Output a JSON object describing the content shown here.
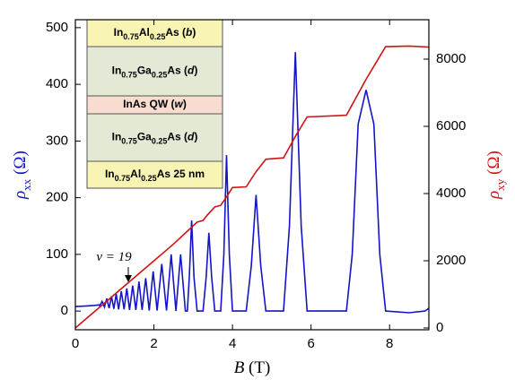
{
  "chart_data": {
    "type": "line",
    "xlabel": [
      {
        "t": "B",
        "s": "i"
      },
      {
        "t": " (T)"
      }
    ],
    "ylabel": [
      {
        "t": "ρ",
        "s": "i"
      },
      {
        "t": "xx",
        "s": "sub"
      },
      {
        "t": " (Ω)"
      }
    ],
    "y2label": [
      {
        "t": "ρ",
        "s": "i"
      },
      {
        "t": "xy",
        "s": "sub"
      },
      {
        "t": " (Ω)"
      }
    ],
    "xlim": [
      0,
      9
    ],
    "xticks": [
      0,
      2,
      4,
      6,
      8
    ],
    "ylim": [
      -33,
      514
    ],
    "yticks": [
      0,
      100,
      200,
      300,
      400,
      500
    ],
    "y2lim": [
      -53,
      9173
    ],
    "y2ticks": [
      0,
      2000,
      4000,
      6000,
      8000
    ],
    "series": [
      {
        "name": "ρxx",
        "color": "#1414c8",
        "x": [
          0,
          0.3,
          0.5,
          0.6,
          0.62,
          0.68,
          0.74,
          0.8,
          0.86,
          0.92,
          0.98,
          1.04,
          1.1,
          1.17,
          1.24,
          1.31,
          1.38,
          1.46,
          1.54,
          1.62,
          1.7,
          1.79,
          1.88,
          1.98,
          2.08,
          2.2,
          2.32,
          2.44,
          2.56,
          2.68,
          2.8,
          2.85,
          2.9,
          2.96,
          3.02,
          3.1,
          3.25,
          3.33,
          3.4,
          3.47,
          3.55,
          3.7,
          3.78,
          3.85,
          3.92,
          4.0,
          4.35,
          4.48,
          4.6,
          4.72,
          4.85,
          5.3,
          5.45,
          5.6,
          5.75,
          5.9,
          6.9,
          7.05,
          7.2,
          7.4,
          7.6,
          7.75,
          7.9,
          8.5,
          8.9,
          9
        ],
        "values": [
          8,
          9,
          10,
          11,
          9,
          17,
          7,
          22,
          5,
          26,
          4,
          30,
          3,
          35,
          3,
          40,
          2,
          45,
          2,
          52,
          2,
          58,
          1,
          70,
          1,
          83,
          1,
          100,
          0,
          100,
          0,
          0,
          60,
          160,
          60,
          0,
          0,
          60,
          138,
          60,
          0,
          0,
          100,
          275,
          100,
          0,
          0,
          80,
          205,
          80,
          0,
          0,
          150,
          457,
          150,
          0,
          0,
          100,
          330,
          390,
          330,
          100,
          0,
          -3,
          0,
          5
        ]
      },
      {
        "name": "ρxy",
        "color": "#d01414",
        "axis": "y2",
        "x": [
          0,
          2.0,
          2.3,
          2.5,
          2.85,
          3.1,
          3.25,
          3.35,
          3.55,
          3.7,
          3.85,
          4.0,
          4.35,
          4.6,
          4.85,
          5.3,
          5.6,
          5.9,
          6.9,
          7.4,
          7.9,
          8.5,
          9
        ],
        "values": [
          0,
          2000,
          2300,
          2500,
          2880,
          3150,
          3200,
          3350,
          3600,
          3650,
          3900,
          4180,
          4200,
          4650,
          5020,
          5060,
          5700,
          6280,
          6330,
          7400,
          8370,
          8390,
          8360
        ]
      }
    ],
    "annotation": [
      {
        "t": "ν = 19",
        "s": "i"
      }
    ],
    "layers": [
      {
        "color": "#f7f4b4",
        "text": [
          {
            "t": "In"
          },
          {
            "t": "0.75",
            "s": "sub"
          },
          {
            "t": "Al"
          },
          {
            "t": "0.25",
            "s": "sub"
          },
          {
            "t": "As ("
          },
          {
            "t": "b",
            "s": "i"
          },
          {
            "t": ")"
          }
        ]
      },
      {
        "color": "#e4e9d6",
        "text": [
          {
            "t": "In"
          },
          {
            "t": "0.75",
            "s": "sub"
          },
          {
            "t": "Ga"
          },
          {
            "t": "0.25",
            "s": "sub"
          },
          {
            "t": "As ("
          },
          {
            "t": "d",
            "s": "i"
          },
          {
            "t": ")"
          }
        ]
      },
      {
        "color": "#f8dccf",
        "text": [
          {
            "t": "InAs QW ("
          },
          {
            "t": "w",
            "s": "i"
          },
          {
            "t": ")"
          }
        ]
      },
      {
        "color": "#e4e9d6",
        "text": [
          {
            "t": "In"
          },
          {
            "t": "0.75",
            "s": "sub"
          },
          {
            "t": "Ga"
          },
          {
            "t": "0.25",
            "s": "sub"
          },
          {
            "t": "As ("
          },
          {
            "t": "d",
            "s": "i"
          },
          {
            "t": ")"
          }
        ]
      },
      {
        "color": "#f7f4b4",
        "text": [
          {
            "t": "In"
          },
          {
            "t": "0.75",
            "s": "sub"
          },
          {
            "t": "Al"
          },
          {
            "t": "0.25",
            "s": "sub"
          },
          {
            "t": "As 25 nm"
          }
        ]
      }
    ]
  }
}
